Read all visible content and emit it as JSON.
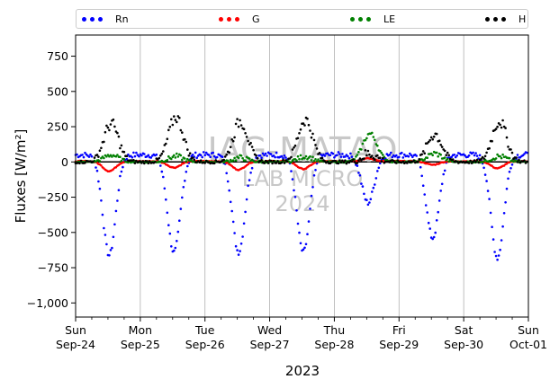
{
  "chart_data": {
    "type": "scatter",
    "xlabel": "2023",
    "ylabel": "Fluxes [W/m²]",
    "ylim": [
      -1100,
      900
    ],
    "yticks": [
      750,
      500,
      250,
      0,
      -250,
      -500,
      -750,
      -1000
    ],
    "xlim": [
      0,
      7
    ],
    "xticks": [
      {
        "x": 0,
        "day": "Sun",
        "date": "Sep-24"
      },
      {
        "x": 1,
        "day": "Mon",
        "date": "Sep-25"
      },
      {
        "x": 2,
        "day": "Tue",
        "date": "Sep-26"
      },
      {
        "x": 3,
        "day": "Wed",
        "date": "Sep-27"
      },
      {
        "x": 4,
        "day": "Thu",
        "date": "Sep-28"
      },
      {
        "x": 5,
        "day": "Fri",
        "date": "Sep-29"
      },
      {
        "x": 6,
        "day": "Sat",
        "date": "Sep-30"
      },
      {
        "x": 7,
        "day": "Sun",
        "date": "Oct-01"
      }
    ],
    "grid": "vertical",
    "legend_position": "top",
    "watermark": [
      "IAG-MATAO",
      "LAB MICRO",
      "2024"
    ],
    "series": [
      {
        "name": "Rn",
        "color": "#0000ff",
        "daily_min": [
          -660,
          -640,
          -640,
          -640,
          -290,
          -540,
          -680
        ],
        "night": 50
      },
      {
        "name": "G",
        "color": "#ff0000",
        "daily_min": [
          -65,
          -40,
          -55,
          -50,
          25,
          -20,
          -45
        ],
        "night": 5
      },
      {
        "name": "LE",
        "color": "#008000",
        "daily_max": [
          50,
          40,
          30,
          40,
          200,
          60,
          40
        ],
        "night": 0
      },
      {
        "name": "H",
        "color": "#000000",
        "daily_max": [
          270,
          320,
          290,
          300,
          60,
          200,
          290
        ],
        "night": 0
      }
    ]
  }
}
